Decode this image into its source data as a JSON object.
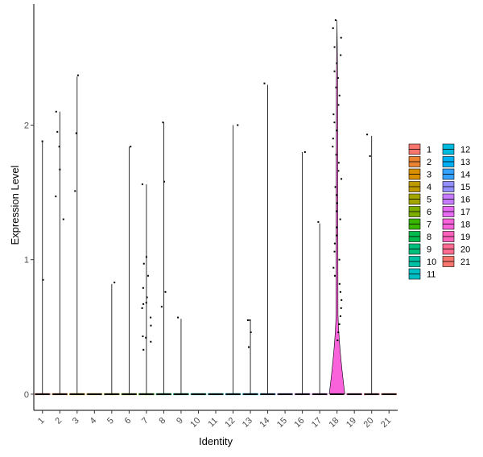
{
  "chart_data": {
    "type": "violin",
    "xlabel": "Identity",
    "ylabel": "Expression Level",
    "yticks": [
      0,
      1,
      2
    ],
    "ylim": [
      -0.12,
      2.9
    ],
    "grid": false,
    "legend_position": "right",
    "categories": [
      "1",
      "2",
      "3",
      "4",
      "5",
      "6",
      "7",
      "8",
      "9",
      "10",
      "11",
      "12",
      "13",
      "14",
      "15",
      "16",
      "17",
      "18",
      "19",
      "20",
      "21"
    ],
    "colors": [
      "#F8766D",
      "#EA8331",
      "#D89000",
      "#C09B00",
      "#A3A500",
      "#7CAE00",
      "#39B600",
      "#00BB4E",
      "#00BF7D",
      "#00C1A3",
      "#00BFC4",
      "#00BAE0",
      "#00B0F6",
      "#35A2FF",
      "#9590FF",
      "#C77CFF",
      "#E76BF3",
      "#FA62DB",
      "#FF62BC",
      "#FF6C91",
      "#F8766D"
    ],
    "violin_max": [
      1.88,
      2.1,
      2.36,
      0,
      0.82,
      1.84,
      1.56,
      2.02,
      0.56,
      0,
      0,
      2.0,
      0.55,
      2.3,
      0,
      1.8,
      1.27,
      2.78,
      0,
      1.92,
      0
    ],
    "series": [
      {
        "name": "1",
        "values": [
          1.88,
          0.85
        ]
      },
      {
        "name": "2",
        "values": [
          2.1,
          1.95,
          1.84,
          1.67,
          1.47,
          1.3
        ]
      },
      {
        "name": "3",
        "values": [
          2.37,
          1.94,
          1.51
        ]
      },
      {
        "name": "4",
        "values": []
      },
      {
        "name": "5",
        "values": [
          0.83
        ]
      },
      {
        "name": "6",
        "values": [
          1.84
        ]
      },
      {
        "name": "7",
        "values": [
          1.56,
          1.02,
          0.97,
          0.88,
          0.79,
          0.72,
          0.68,
          0.67,
          0.64,
          0.57,
          0.51,
          0.43,
          0.42,
          0.39,
          0.33
        ]
      },
      {
        "name": "8",
        "values": [
          2.02,
          1.58,
          0.76,
          0.65
        ]
      },
      {
        "name": "9",
        "values": [
          0.57
        ]
      },
      {
        "name": "10",
        "values": []
      },
      {
        "name": "11",
        "values": []
      },
      {
        "name": "12",
        "values": [
          2.0
        ]
      },
      {
        "name": "13",
        "values": [
          0.55,
          0.55,
          0.46,
          0.35
        ]
      },
      {
        "name": "14",
        "values": [
          2.31
        ]
      },
      {
        "name": "15",
        "values": []
      },
      {
        "name": "16",
        "values": [
          1.8
        ]
      },
      {
        "name": "17",
        "values": [
          1.28
        ]
      },
      {
        "name": "18",
        "values": [
          2.78,
          2.72,
          2.65,
          2.58,
          2.52,
          2.46,
          2.4,
          2.35,
          2.28,
          2.22,
          2.15,
          2.08,
          2.02,
          1.96,
          1.9,
          1.84,
          1.78,
          1.72,
          1.66,
          1.6,
          1.54,
          1.48,
          1.42,
          1.36,
          1.3,
          1.24,
          1.18,
          1.12,
          1.06,
          1.0,
          0.94,
          0.88,
          0.82,
          0.76,
          0.7,
          0.64,
          0.58,
          0.52,
          0.46,
          0.4
        ]
      },
      {
        "name": "19",
        "values": []
      },
      {
        "name": "20",
        "values": [
          1.93,
          1.77
        ]
      },
      {
        "name": "21",
        "values": []
      }
    ]
  }
}
